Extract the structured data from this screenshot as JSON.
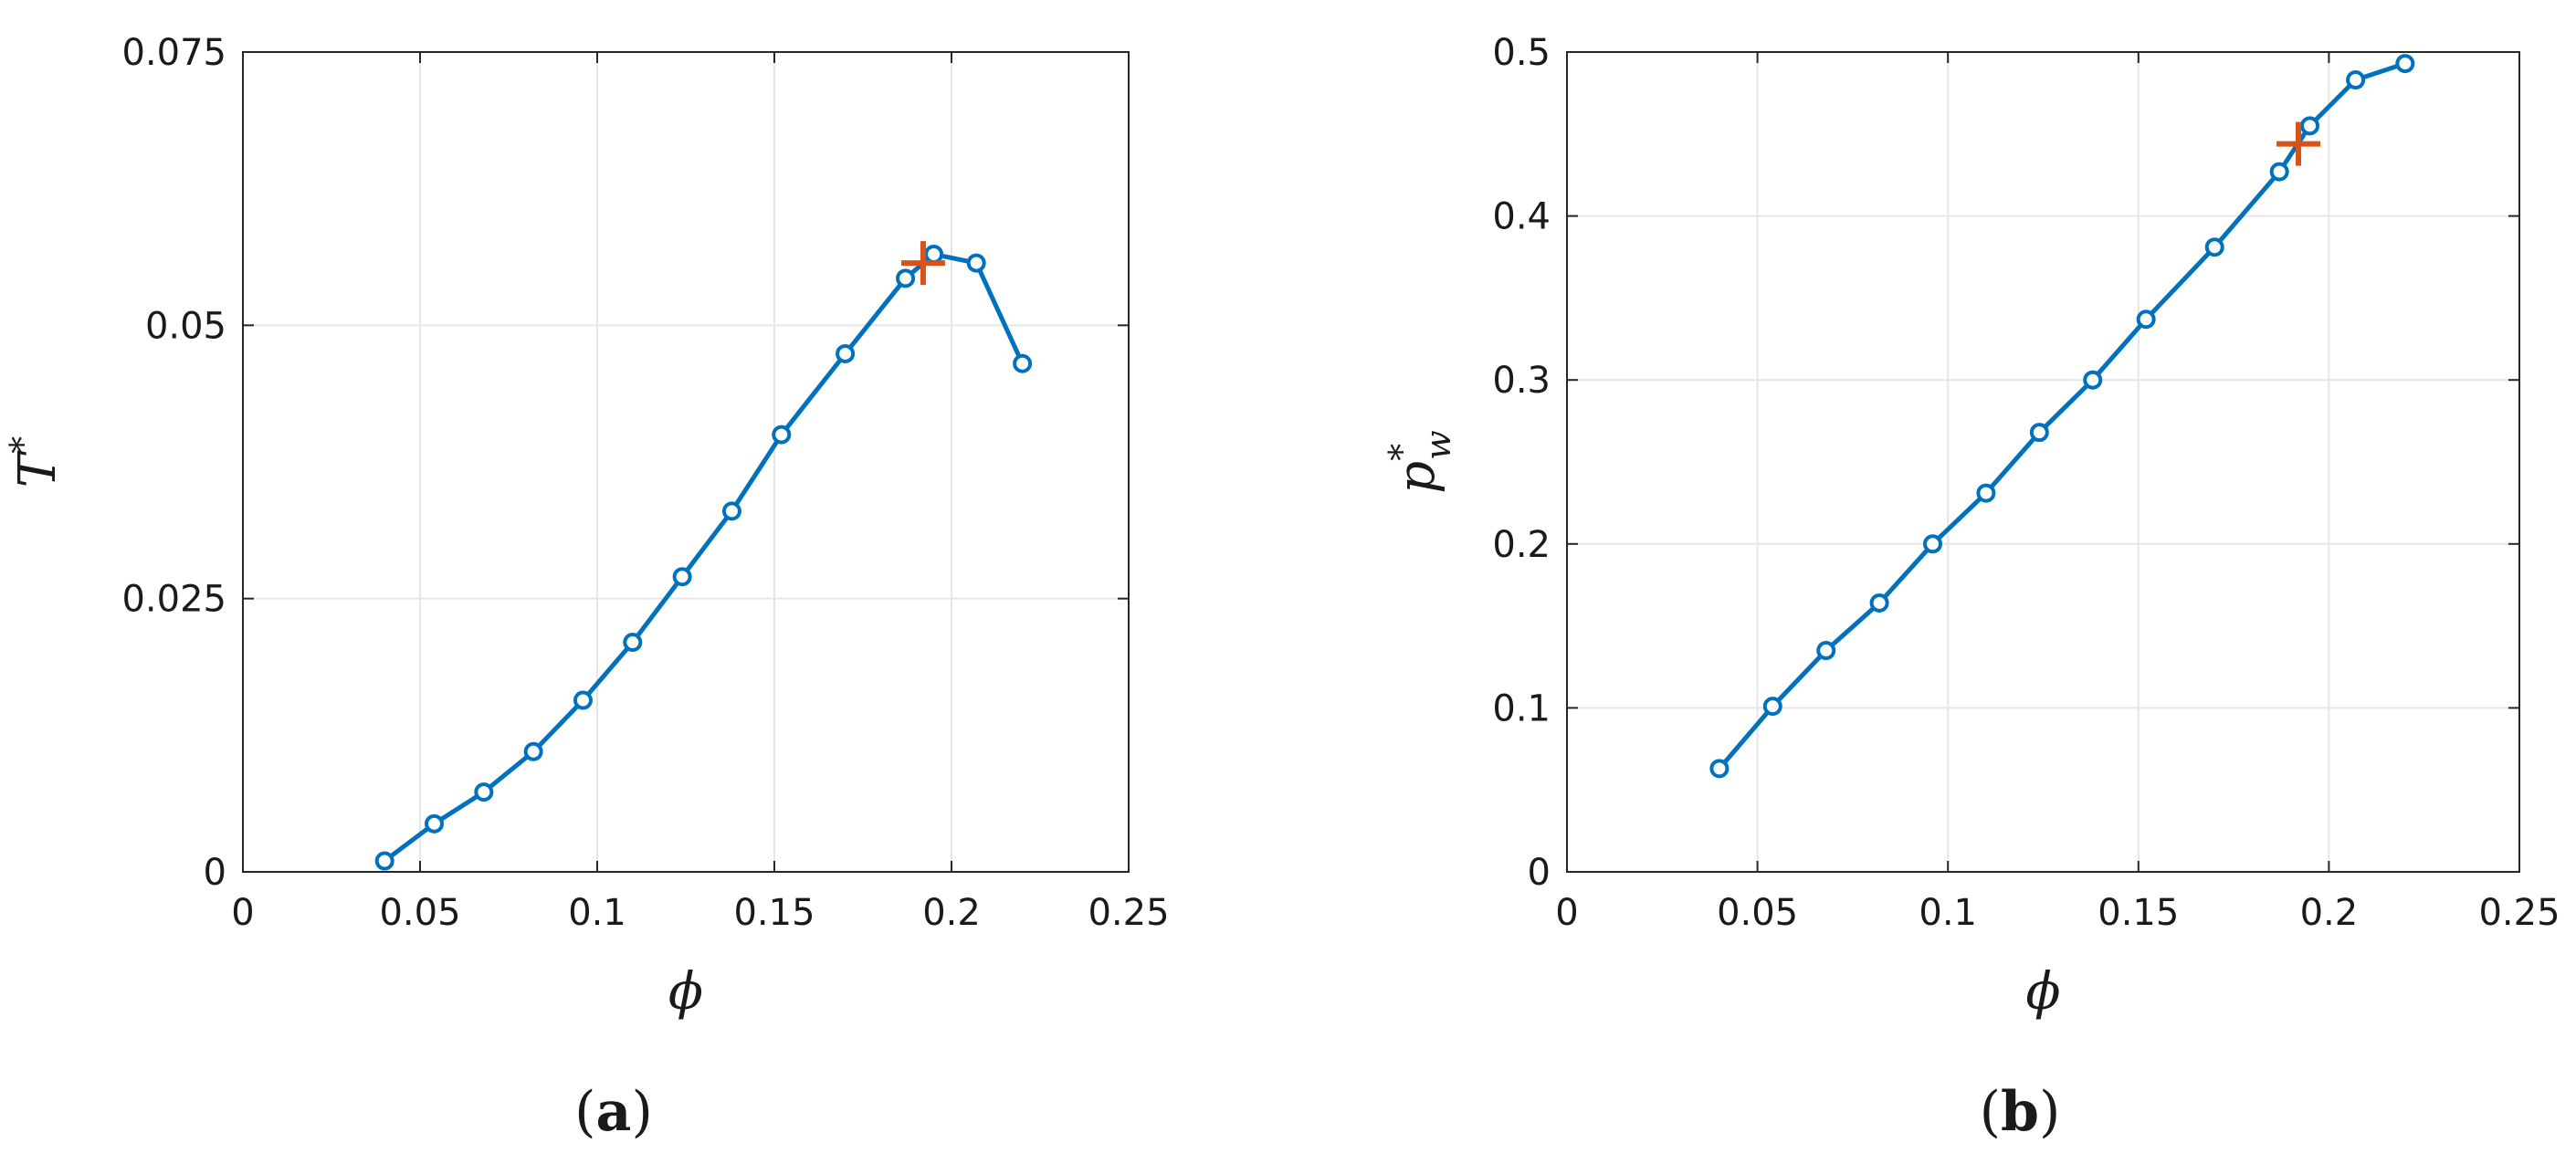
{
  "chart_data": [
    {
      "panel": "a",
      "caption_letter": "a",
      "type": "line",
      "xlabel": "ϕ",
      "ylabel": "T*",
      "ylabel_base": "T",
      "ylabel_sup": "*",
      "ylabel_sub": "",
      "xlim": [
        0,
        0.25
      ],
      "ylim": [
        0,
        0.075
      ],
      "xticks": [
        0,
        0.05,
        0.1,
        0.15,
        0.2,
        0.25
      ],
      "xtick_labels": [
        "0",
        "0.05",
        "0.1",
        "0.15",
        "0.2",
        "0.25"
      ],
      "yticks": [
        0,
        0.025,
        0.05,
        0.075
      ],
      "ytick_labels": [
        "0",
        "0.025",
        "0.05",
        "0.075"
      ],
      "grid": true,
      "series_color": "#0072BD",
      "marker_color": "#D95319",
      "series": [
        {
          "x": [
            0.04,
            0.054,
            0.068,
            0.082,
            0.096,
            0.11,
            0.124,
            0.138,
            0.152,
            0.17,
            0.187,
            0.195,
            0.207,
            0.22
          ],
          "y": [
            0.001,
            0.0044,
            0.0073,
            0.011,
            0.0157,
            0.021,
            0.027,
            0.033,
            0.04,
            0.0474,
            0.0543,
            0.0565,
            0.0557,
            0.0465
          ]
        }
      ],
      "marked_point": {
        "x": 0.192,
        "y": 0.0557
      }
    },
    {
      "panel": "b",
      "caption_letter": "b",
      "type": "line",
      "xlabel": "ϕ",
      "ylabel": "p*w",
      "ylabel_base": "p",
      "ylabel_sup": "*",
      "ylabel_sub": "w",
      "xlim": [
        0,
        0.25
      ],
      "ylim": [
        0,
        0.5
      ],
      "xticks": [
        0,
        0.05,
        0.1,
        0.15,
        0.2,
        0.25
      ],
      "xtick_labels": [
        "0",
        "0.05",
        "0.1",
        "0.15",
        "0.2",
        "0.25"
      ],
      "yticks": [
        0,
        0.1,
        0.2,
        0.3,
        0.4,
        0.5
      ],
      "ytick_labels": [
        "0",
        "0.1",
        "0.2",
        "0.3",
        "0.4",
        "0.5"
      ],
      "grid": true,
      "series_color": "#0072BD",
      "marker_color": "#D95319",
      "series": [
        {
          "x": [
            0.04,
            0.054,
            0.068,
            0.082,
            0.096,
            0.11,
            0.124,
            0.138,
            0.152,
            0.17,
            0.187,
            0.195,
            0.207,
            0.22
          ],
          "y": [
            0.063,
            0.101,
            0.135,
            0.164,
            0.2,
            0.231,
            0.268,
            0.3,
            0.337,
            0.381,
            0.427,
            0.455,
            0.483,
            0.493
          ]
        }
      ],
      "marked_point": {
        "x": 0.192,
        "y": 0.444
      }
    }
  ]
}
